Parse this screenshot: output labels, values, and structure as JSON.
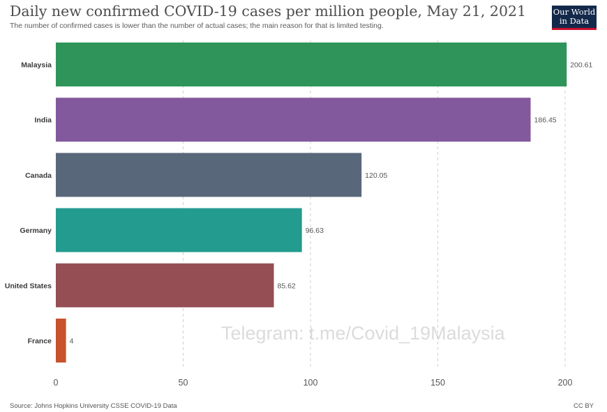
{
  "header": {
    "title": "Daily new confirmed COVID-19 cases per million people, May 21, 2021",
    "subtitle": "The number of confirmed cases is lower than the number of actual cases; the main reason for that is limited testing.",
    "logo_line1": "Our World",
    "logo_line2": "in Data"
  },
  "watermark": "Telegram: t.me/Covid_19Malaysia",
  "footer": {
    "source": "Source: Johns Hopkins University CSSE COVID-19 Data",
    "license": "CC BY"
  },
  "chart_data": {
    "type": "bar",
    "orientation": "horizontal",
    "title": "Daily new confirmed COVID-19 cases per million people, May 21, 2021",
    "subtitle": "The number of confirmed cases is lower than the number of actual cases; the main reason for that is limited testing.",
    "xlabel": "",
    "ylabel": "",
    "categories": [
      "Malaysia",
      "India",
      "Canada",
      "Germany",
      "United States",
      "France"
    ],
    "values": [
      200.61,
      186.45,
      120.05,
      96.63,
      85.62,
      4
    ],
    "value_labels": [
      "200.61",
      "186.45",
      "120.05",
      "96.63",
      "85.62",
      "4"
    ],
    "colors": [
      "#2e9459",
      "#82599d",
      "#59677a",
      "#239b8f",
      "#944e54",
      "#c7522c"
    ],
    "xlim": [
      0,
      200
    ],
    "xticks": [
      0,
      50,
      100,
      150,
      200
    ],
    "grid": true
  }
}
